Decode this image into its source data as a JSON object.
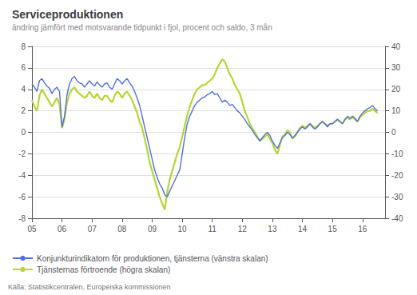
{
  "chart_data": {
    "type": "line",
    "title": "Serviceproduktionen",
    "subtitle": "ändring jämfört med motsvarande tidpunkt i fjol, procent och saldo, 3 mån",
    "source": "Källa: Statistikcentralen, Europeiska kommissionen",
    "x": [
      2005.0,
      2005.083,
      2005.167,
      2005.25,
      2005.333,
      2005.417,
      2005.5,
      2005.583,
      2005.667,
      2005.75,
      2005.833,
      2005.917,
      2006.0,
      2006.083,
      2006.167,
      2006.25,
      2006.333,
      2006.417,
      2006.5,
      2006.583,
      2006.667,
      2006.75,
      2006.833,
      2006.917,
      2007.0,
      2007.083,
      2007.167,
      2007.25,
      2007.333,
      2007.417,
      2007.5,
      2007.583,
      2007.667,
      2007.75,
      2007.833,
      2007.917,
      2008.0,
      2008.083,
      2008.167,
      2008.25,
      2008.333,
      2008.417,
      2008.5,
      2008.583,
      2008.667,
      2008.75,
      2008.833,
      2008.917,
      2009.0,
      2009.083,
      2009.167,
      2009.25,
      2009.333,
      2009.417,
      2009.5,
      2009.583,
      2009.667,
      2009.75,
      2009.833,
      2009.917,
      2010.0,
      2010.083,
      2010.167,
      2010.25,
      2010.333,
      2010.417,
      2010.5,
      2010.583,
      2010.667,
      2010.75,
      2010.833,
      2010.917,
      2011.0,
      2011.083,
      2011.167,
      2011.25,
      2011.333,
      2011.417,
      2011.5,
      2011.583,
      2011.667,
      2011.75,
      2011.833,
      2011.917,
      2012.0,
      2012.083,
      2012.167,
      2012.25,
      2012.333,
      2012.417,
      2012.5,
      2012.583,
      2012.667,
      2012.75,
      2012.833,
      2012.917,
      2013.0,
      2013.083,
      2013.167,
      2013.25,
      2013.333,
      2013.417,
      2013.5,
      2013.583,
      2013.667,
      2013.75,
      2013.833,
      2013.917,
      2014.0,
      2014.083,
      2014.167,
      2014.25,
      2014.333,
      2014.417,
      2014.5,
      2014.583,
      2014.667,
      2014.75,
      2014.833,
      2014.917,
      2015.0,
      2015.083,
      2015.167,
      2015.25,
      2015.333,
      2015.417,
      2015.5,
      2015.583,
      2015.667,
      2015.75,
      2015.833,
      2015.917,
      2016.0,
      2016.083,
      2016.167,
      2016.25,
      2016.333,
      2016.417,
      2016.5
    ],
    "series": [
      {
        "name": "Konjunkturindikatorn för produktionen, tjänsterna (vänstra skalan)",
        "axis": "y",
        "values": [
          4.5,
          4.2,
          3.8,
          4.8,
          5.0,
          4.6,
          4.3,
          4.1,
          3.6,
          4.0,
          4.2,
          3.8,
          0.5,
          1.5,
          3.5,
          4.5,
          5.0,
          5.2,
          4.8,
          4.6,
          4.5,
          4.2,
          4.5,
          4.8,
          4.5,
          4.3,
          4.7,
          4.4,
          4.2,
          4.5,
          4.6,
          4.2,
          4.0,
          4.5,
          5.0,
          4.8,
          4.5,
          4.8,
          5.0,
          4.6,
          4.3,
          3.8,
          3.2,
          2.5,
          1.5,
          0.5,
          -0.5,
          -1.5,
          -2.5,
          -3.5,
          -4.2,
          -4.8,
          -5.2,
          -5.8,
          -6.0,
          -5.5,
          -5.0,
          -4.5,
          -4.0,
          -3.5,
          -2.0,
          -0.5,
          0.8,
          1.5,
          2.0,
          2.5,
          2.8,
          3.0,
          3.2,
          3.3,
          3.5,
          3.6,
          3.8,
          3.5,
          3.6,
          3.2,
          2.8,
          3.0,
          2.8,
          2.5,
          2.6,
          2.3,
          2.0,
          1.8,
          1.5,
          1.2,
          0.8,
          0.5,
          0.2,
          -0.2,
          -0.5,
          -0.8,
          -0.5,
          -0.2,
          0.0,
          -0.3,
          -0.8,
          -1.2,
          -1.5,
          -1.0,
          -0.5,
          -0.3,
          0.0,
          -0.2,
          -0.5,
          -0.3,
          0.0,
          0.3,
          0.5,
          0.3,
          0.5,
          0.8,
          0.5,
          0.3,
          0.5,
          0.8,
          1.0,
          0.8,
          0.5,
          0.8,
          0.8,
          1.0,
          1.2,
          1.0,
          0.8,
          1.2,
          1.5,
          1.3,
          1.5,
          1.3,
          1.0,
          1.5,
          1.8,
          2.0,
          2.2,
          2.3,
          2.5,
          2.2,
          2.0
        ]
      },
      {
        "name": "Tjänsternas förtroende (högra skalan)",
        "axis": "y2",
        "values": [
          15,
          12,
          10,
          17,
          20,
          18,
          16,
          14,
          12,
          14,
          16,
          13,
          2,
          6,
          14,
          18,
          20,
          21,
          19,
          18,
          17,
          16,
          17,
          19,
          17,
          16,
          18,
          16,
          15,
          17,
          17,
          15,
          14,
          17,
          19,
          18,
          16,
          18,
          19,
          17,
          15,
          12,
          9,
          5,
          2,
          -3,
          -8,
          -14,
          -18,
          -22,
          -26,
          -30,
          -33,
          -36,
          -28,
          -22,
          -18,
          -14,
          -10,
          -7,
          -2,
          3,
          8,
          12,
          15,
          18,
          20,
          21,
          22,
          22,
          23,
          24,
          25,
          27,
          30,
          32,
          34,
          33,
          30,
          27,
          25,
          22,
          20,
          18,
          14,
          10,
          7,
          4,
          2,
          0,
          -2,
          -4,
          -3,
          -2,
          -1,
          -3,
          -5,
          -8,
          -10,
          -6,
          -2,
          -1,
          1,
          0,
          -3,
          -2,
          0,
          2,
          3,
          2,
          3,
          4,
          3,
          2,
          3,
          4,
          5,
          4,
          3,
          4,
          4,
          5,
          6,
          5,
          4,
          6,
          7,
          6,
          7,
          6,
          5,
          7,
          8,
          9,
          10,
          10,
          11,
          10,
          9
        ]
      }
    ],
    "xlim": [
      2005.0,
      2016.75
    ],
    "xticks": [
      {
        "value": 2005,
        "label": "05"
      },
      {
        "value": 2006,
        "label": "06"
      },
      {
        "value": 2007,
        "label": "07"
      },
      {
        "value": 2008,
        "label": "08"
      },
      {
        "value": 2009,
        "label": "09"
      },
      {
        "value": 2010,
        "label": "10"
      },
      {
        "value": 2011,
        "label": "11"
      },
      {
        "value": 2012,
        "label": "12"
      },
      {
        "value": 2013,
        "label": "13"
      },
      {
        "value": 2014,
        "label": "14"
      },
      {
        "value": 2015,
        "label": "15"
      },
      {
        "value": 2016,
        "label": "16"
      }
    ],
    "ylim": [
      -8,
      8
    ],
    "yticks": [
      -8,
      -6,
      -4,
      -2,
      0,
      2,
      4,
      6,
      8
    ],
    "y2lim": [
      -40,
      40
    ],
    "y2ticks": [
      -40,
      -30,
      -20,
      -10,
      0,
      10,
      20,
      30,
      40
    ],
    "grid": true,
    "legend": "bottom"
  }
}
